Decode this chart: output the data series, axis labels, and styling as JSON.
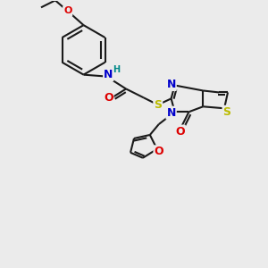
{
  "bg_color": "#ebebeb",
  "bond_color": "#1a1a1a",
  "atom_colors": {
    "N": "#0000cc",
    "O": "#dd0000",
    "S": "#bbbb00",
    "H": "#008888",
    "C": "#1a1a1a"
  }
}
